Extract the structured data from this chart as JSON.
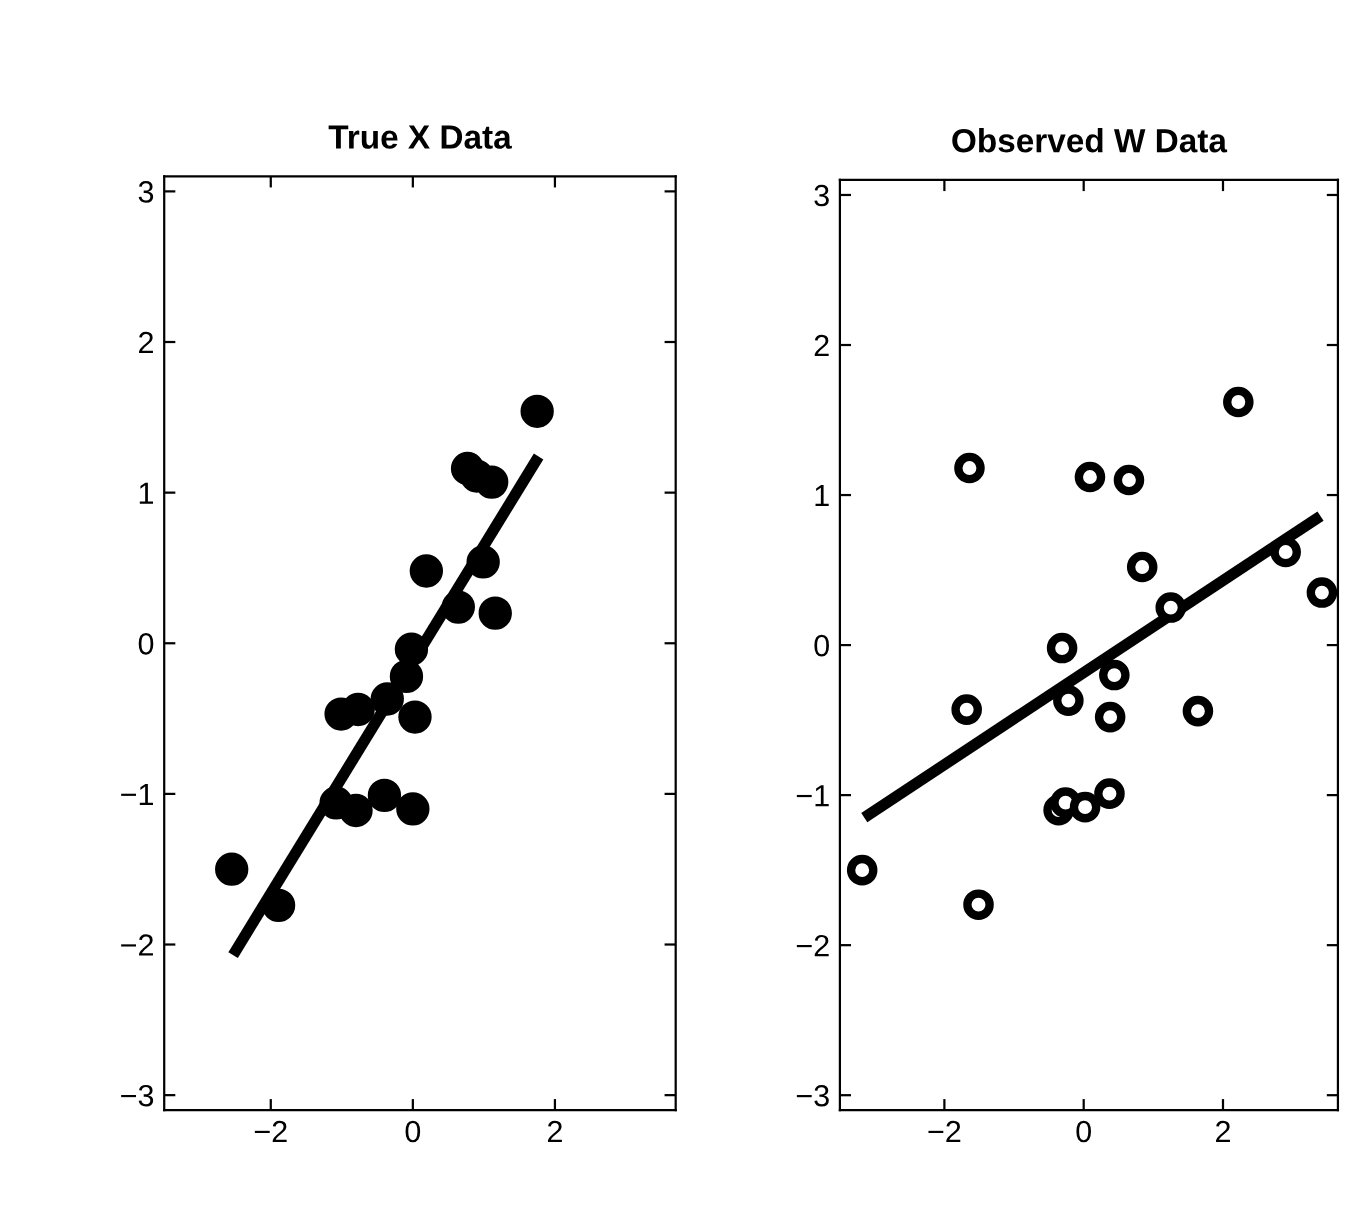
{
  "chart_data": [
    {
      "type": "scatter",
      "title": "True X Data",
      "xlim": [
        -3.5,
        3.7
      ],
      "ylim": [
        -3.1,
        3.1
      ],
      "xticks": [
        {
          "value": -2,
          "label": "−2"
        },
        0,
        2
      ],
      "yticks": [
        {
          "value": -3,
          "label": "−3"
        },
        {
          "value": -2,
          "label": "−2"
        },
        {
          "value": -1,
          "label": "−1"
        },
        0,
        1,
        2,
        3
      ],
      "grid": false,
      "legend": false,
      "series": [
        {
          "color": "#000000",
          "marker": "circle",
          "x": [
            -2.55,
            -1.89,
            1.75,
            0.77,
            0.9,
            1.11,
            0.19,
            0.99,
            0.64,
            1.16,
            -0.02,
            -0.09,
            -0.36,
            0.03,
            -1.01,
            -0.77,
            -1.08,
            -0.8,
            -0.4,
            0.0
          ],
          "values": [
            -1.5,
            -1.74,
            1.54,
            1.16,
            1.11,
            1.07,
            0.48,
            0.54,
            0.24,
            0.2,
            -0.04,
            -0.22,
            -0.37,
            -0.49,
            -0.47,
            -0.44,
            -1.06,
            -1.11,
            -1.01,
            -1.1
          ]
        },
        {
          "type": "line",
          "color": "#000000",
          "marker": "none",
          "line_style": "solid",
          "x": [
            -2.53,
            1.77
          ],
          "values": [
            -2.07,
            1.24
          ]
        }
      ]
    },
    {
      "type": "scatter",
      "title": "Observed W Data",
      "xlim": [
        -3.5,
        3.65
      ],
      "ylim": [
        -3.1,
        3.1
      ],
      "xticks": [
        {
          "value": -2,
          "label": "−2"
        },
        0,
        2
      ],
      "yticks": [
        {
          "value": -3,
          "label": "−3"
        },
        {
          "value": -2,
          "label": "−2"
        },
        {
          "value": -1,
          "label": "−1"
        },
        0,
        1,
        2,
        3
      ],
      "grid": false,
      "legend": false,
      "series": [
        {
          "color": "#000000",
          "marker": "circle",
          "x": [
            -3.18,
            -1.51,
            -1.64,
            -1.68,
            2.22,
            0.09,
            0.65,
            0.84,
            1.25,
            2.9,
            3.42,
            -0.31,
            0.44,
            -0.22,
            0.38,
            1.64,
            -0.36,
            -0.26,
            0.02,
            0.37
          ],
          "values": [
            -1.5,
            -1.73,
            1.18,
            -0.43,
            1.62,
            1.12,
            1.1,
            0.52,
            0.25,
            0.62,
            0.35,
            -0.02,
            -0.2,
            -0.37,
            -0.48,
            -0.44,
            -1.1,
            -1.05,
            -1.08,
            -0.99
          ]
        },
        {
          "type": "line",
          "color": "#000000",
          "marker": "none",
          "line_style": "solid",
          "x": [
            -3.15,
            3.4
          ],
          "values": [
            -1.15,
            0.86
          ]
        }
      ]
    }
  ]
}
